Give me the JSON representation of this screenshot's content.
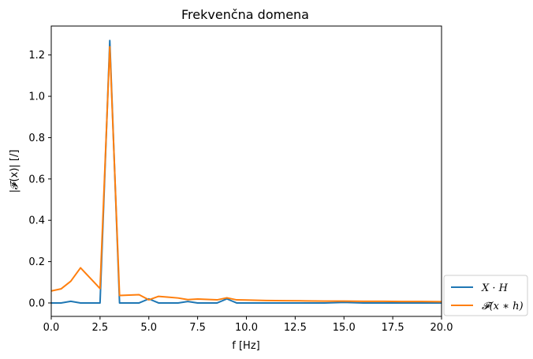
{
  "chart_data": {
    "type": "line",
    "title": "Frekvenčna domena",
    "xlabel": "f [Hz]",
    "ylabel": "|𝓕(x)| [/]",
    "xlim": [
      0,
      20
    ],
    "ylim": [
      -0.065,
      1.34
    ],
    "xticks": [
      0,
      2.5,
      5,
      7.5,
      10,
      12.5,
      15,
      17.5,
      20
    ],
    "xtick_labels": [
      "0.0",
      "2.5",
      "5.0",
      "7.5",
      "10.0",
      "12.5",
      "15.0",
      "17.5",
      "20.0"
    ],
    "yticks": [
      0,
      0.2,
      0.4,
      0.6,
      0.8,
      1.0,
      1.2
    ],
    "ytick_labels": [
      "0.0",
      "0.2",
      "0.4",
      "0.6",
      "0.8",
      "1.0",
      "1.2"
    ],
    "grid": false,
    "legend_position": "outside-bottom-right",
    "series": [
      {
        "name": "X · H",
        "color": "#1f77b4",
        "x": [
          0,
          0.5,
          1,
          1.5,
          2,
          2.5,
          3,
          3.5,
          4,
          4.5,
          5,
          5.5,
          6,
          6.5,
          7,
          7.5,
          8,
          8.5,
          9,
          9.5,
          10,
          11,
          12,
          13,
          14,
          15,
          16,
          17,
          18,
          19,
          20
        ],
        "y": [
          0.0,
          0.0,
          0.008,
          0.0,
          0.0,
          0.0,
          1.27,
          0.0,
          0.0,
          0.0,
          0.02,
          0.0,
          0.0,
          0.0,
          0.007,
          0.0,
          0.0,
          0.0,
          0.02,
          0.0,
          0.0,
          0.0,
          0.0,
          0.0,
          0.0,
          0.003,
          0.0,
          0.0,
          0.0,
          0.0,
          0.0
        ]
      },
      {
        "name": "𝓕(x ∗ h)",
        "color": "#ff7f0e",
        "x": [
          0,
          0.5,
          1,
          1.5,
          2,
          2.5,
          3,
          3.5,
          4,
          4.5,
          5,
          5.5,
          6,
          6.5,
          7,
          7.5,
          8,
          8.5,
          9,
          9.5,
          10,
          11,
          12,
          13,
          14,
          15,
          16,
          17,
          18,
          19,
          20
        ],
        "y": [
          0.058,
          0.068,
          0.105,
          0.17,
          0.12,
          0.07,
          1.24,
          0.036,
          0.038,
          0.04,
          0.015,
          0.032,
          0.028,
          0.024,
          0.016,
          0.019,
          0.017,
          0.015,
          0.025,
          0.015,
          0.014,
          0.012,
          0.011,
          0.01,
          0.009,
          0.009,
          0.008,
          0.008,
          0.007,
          0.007,
          0.006
        ]
      }
    ]
  }
}
